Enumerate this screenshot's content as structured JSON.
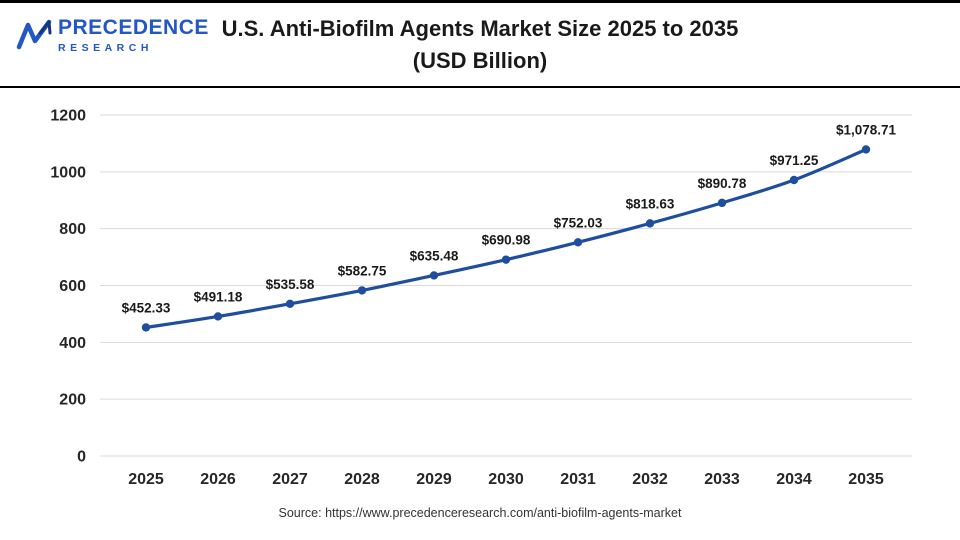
{
  "header": {
    "logo": {
      "line1": "PRECEDENCE",
      "line2": "RESEARCH"
    },
    "title_line1": "U.S. Anti-Biofilm Agents Market Size 2025 to 2035",
    "title_line2": "(USD Billion)"
  },
  "footer": {
    "source": "Source: https://www.precedenceresearch.com/anti-biofilm-agents-market"
  },
  "chart_data": {
    "type": "line",
    "title": "U.S. Anti-Biofilm Agents Market Size 2025 to 2035 (USD Billion)",
    "categories": [
      "2025",
      "2026",
      "2027",
      "2028",
      "2029",
      "2030",
      "2031",
      "2032",
      "2033",
      "2034",
      "2035"
    ],
    "values": [
      452.33,
      491.18,
      535.58,
      582.75,
      635.48,
      690.98,
      752.03,
      818.63,
      890.78,
      971.25,
      1078.71
    ],
    "point_labels": [
      "$452.33",
      "$491.18",
      "$535.58",
      "$582.75",
      "$635.48",
      "$690.98",
      "$752.03",
      "$818.63",
      "$890.78",
      "$971.25",
      "$1,078.71"
    ],
    "xlabel": "",
    "ylabel": "",
    "ylim": [
      0,
      1200
    ],
    "ytick_step": 200,
    "grid": true,
    "legend": "none",
    "line_color": "#1f4e9e",
    "grid_color": "#d9d9d9",
    "label_color": "#1a1a1a"
  }
}
